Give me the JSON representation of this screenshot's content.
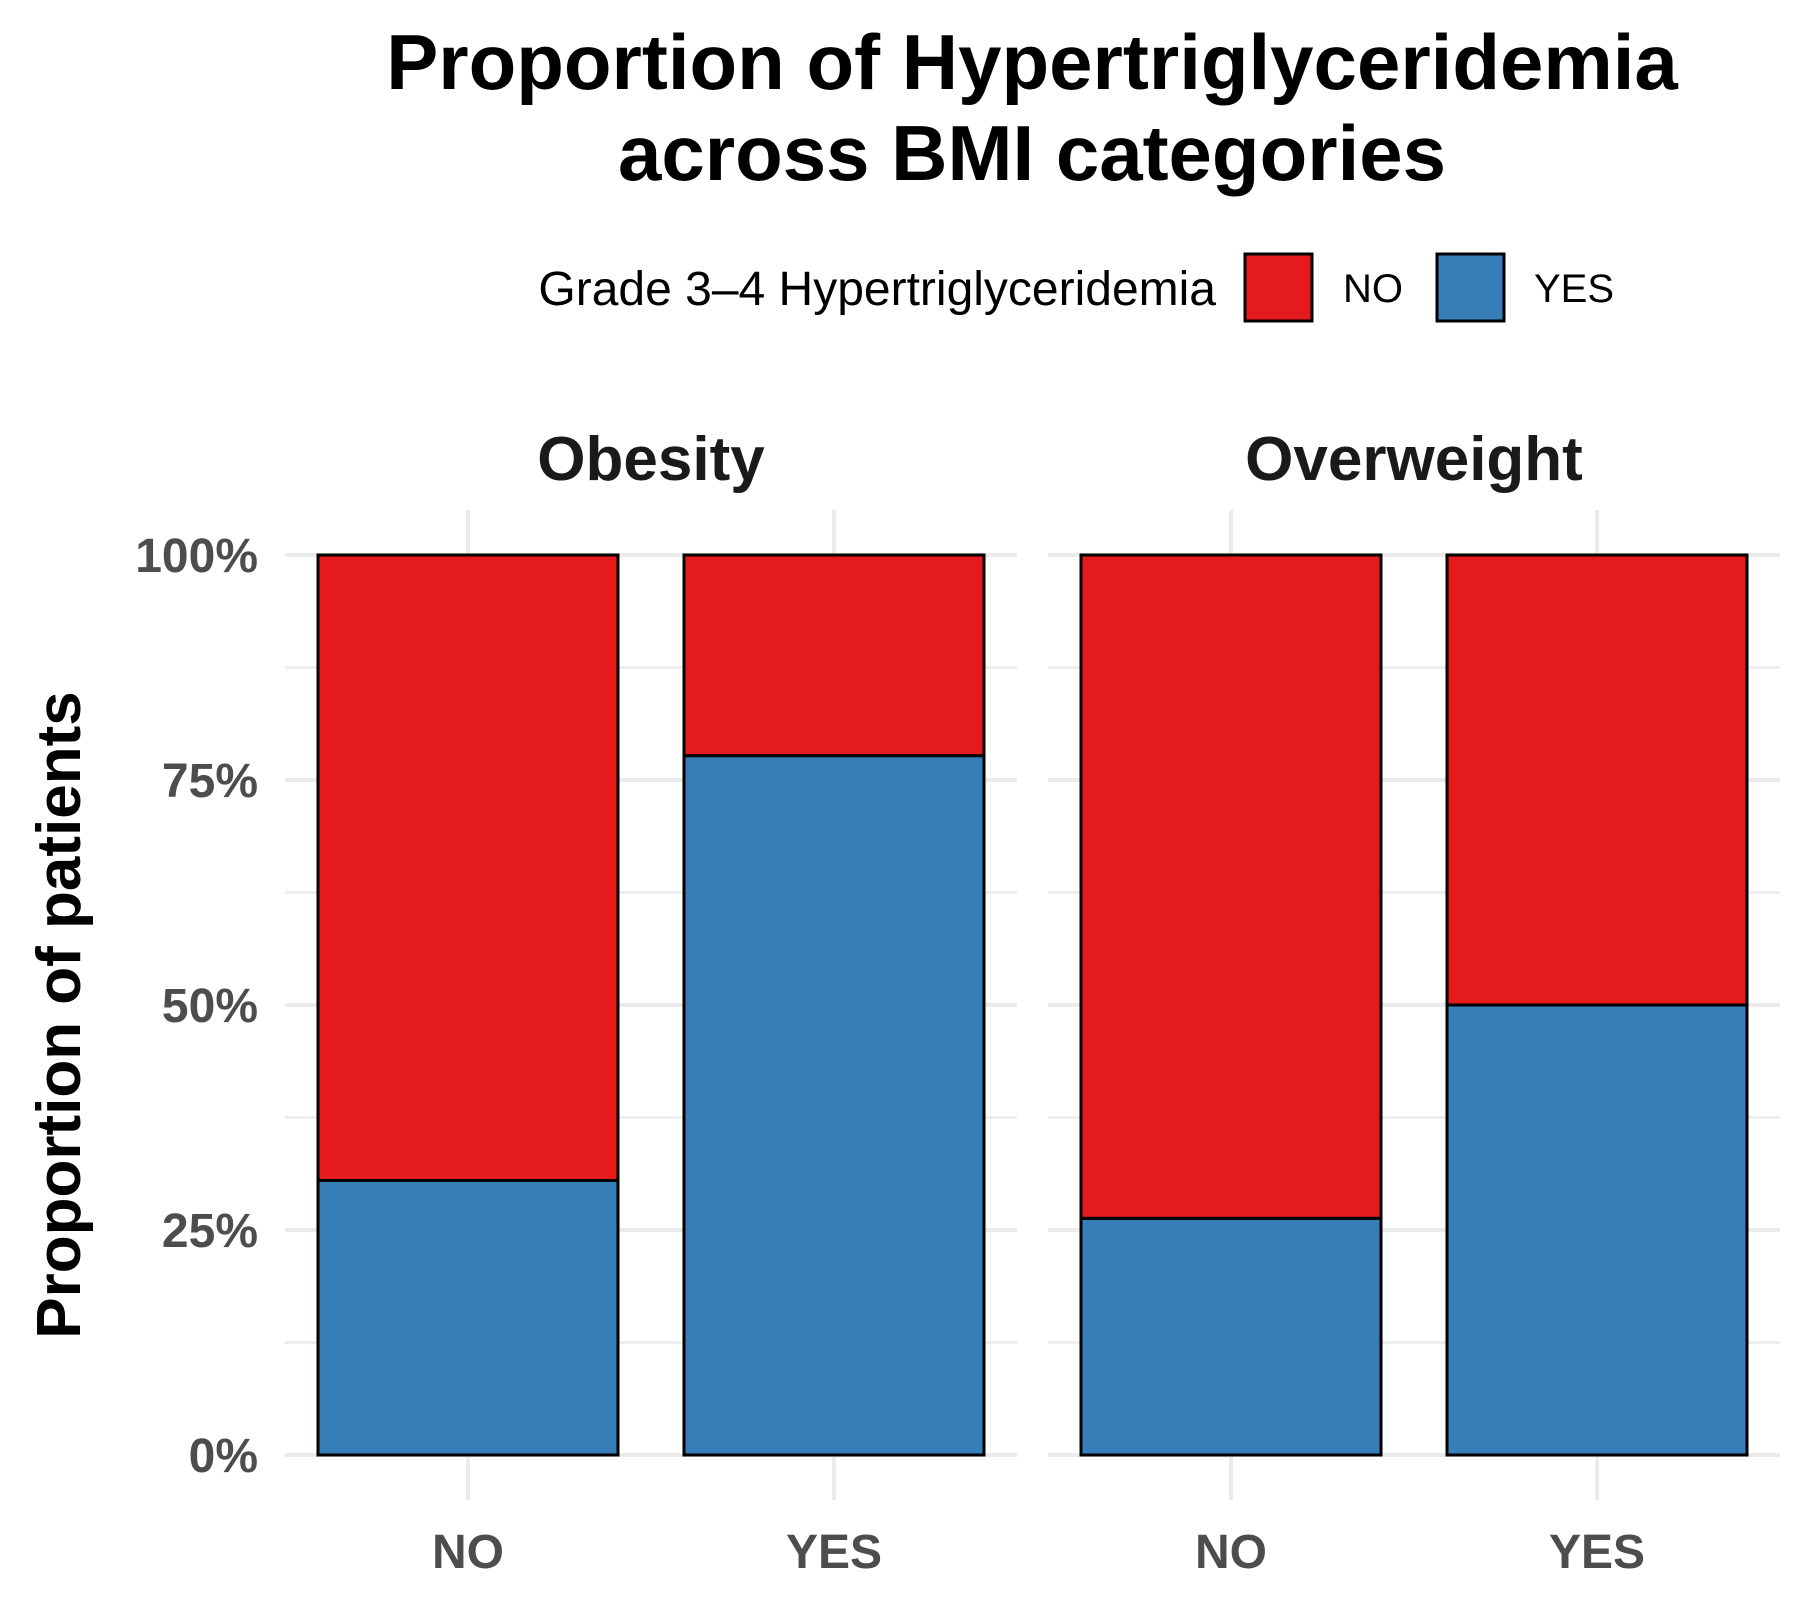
{
  "chart_data": {
    "type": "bar",
    "stacked": true,
    "percent": true,
    "title_lines": [
      "Proportion of Hypertriglyceridemia",
      "across BMI categories"
    ],
    "ylabel": "Proportion of patients",
    "xlabel": "",
    "ylim": [
      0,
      1
    ],
    "y_ticks": [
      "0%",
      "25%",
      "50%",
      "75%",
      "100%"
    ],
    "categories": [
      "NO",
      "YES"
    ],
    "legend": {
      "title": "Grade 3–4 Hypertriglyceridemia",
      "position": "top",
      "entries": [
        {
          "label": "NO",
          "color": "#e41a1c"
        },
        {
          "label": "YES",
          "color": "#377eb8"
        }
      ]
    },
    "facets": [
      {
        "name": "Obesity",
        "series": [
          {
            "name": "YES",
            "values": [
              0.305,
              0.777
            ]
          },
          {
            "name": "NO",
            "values": [
              0.695,
              0.223
            ]
          }
        ]
      },
      {
        "name": "Overweight",
        "series": [
          {
            "name": "YES",
            "values": [
              0.263,
              0.5
            ]
          },
          {
            "name": "NO",
            "values": [
              0.737,
              0.5
            ]
          }
        ]
      }
    ],
    "grid": true,
    "colors": {
      "NO": "#e41a1c",
      "YES": "#377eb8",
      "grid": "#ebebeb"
    }
  }
}
